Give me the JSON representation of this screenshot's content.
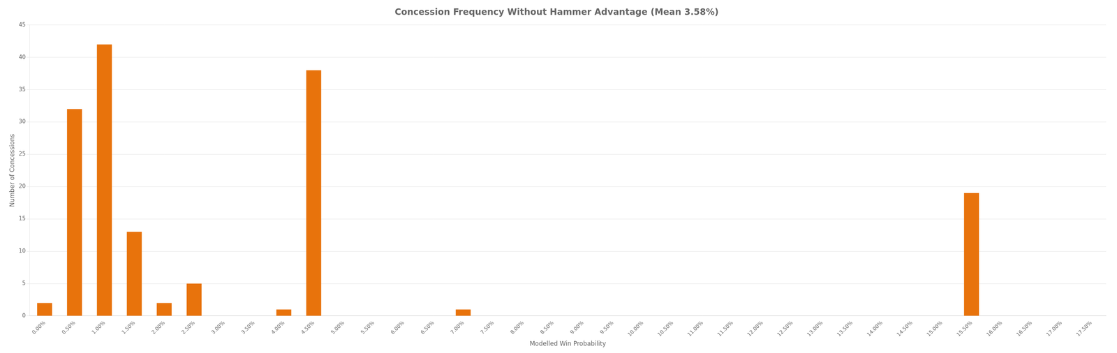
{
  "chart_data": {
    "type": "bar",
    "title": "Concession Frequency Without Hammer Advantage (Mean 3.58%)",
    "xlabel": "Modelled Win Probability",
    "ylabel": "Number of Concessions",
    "categories": [
      "0.00%",
      "0.50%",
      "1.00%",
      "1.50%",
      "2.00%",
      "2.50%",
      "3.00%",
      "3.50%",
      "4.00%",
      "4.50%",
      "5.00%",
      "5.50%",
      "6.00%",
      "6.50%",
      "7.00%",
      "7.50%",
      "8.00%",
      "8.50%",
      "9.00%",
      "9.50%",
      "10.00%",
      "10.50%",
      "11.00%",
      "11.50%",
      "12.00%",
      "12.50%",
      "13.00%",
      "13.50%",
      "14.00%",
      "14.50%",
      "15.00%",
      "15.50%",
      "16.00%",
      "16.50%",
      "17.00%",
      "17.50%"
    ],
    "values": [
      2,
      32,
      42,
      13,
      2,
      5,
      0,
      0,
      1,
      38,
      0,
      0,
      0,
      0,
      1,
      0,
      0,
      0,
      0,
      0,
      0,
      0,
      0,
      0,
      0,
      0,
      0,
      0,
      0,
      0,
      0,
      19,
      0,
      0,
      0,
      0
    ],
    "color": "#E8730C",
    "ylim": [
      0,
      45
    ],
    "yticks": [
      0,
      5,
      10,
      15,
      20,
      25,
      30,
      35,
      40,
      45
    ],
    "grid": "y"
  }
}
